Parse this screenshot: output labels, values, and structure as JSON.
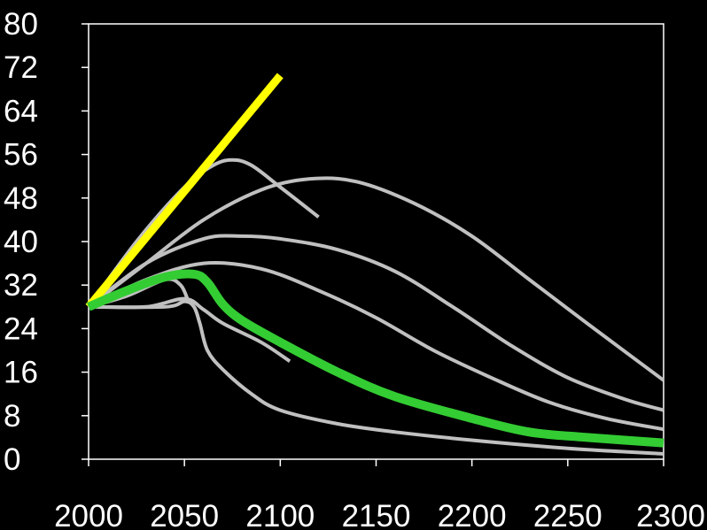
{
  "chart_data": {
    "type": "line",
    "title": "",
    "xlabel": "",
    "ylabel": "",
    "xlim": [
      2000,
      2300
    ],
    "ylim": [
      0,
      80
    ],
    "xticks": [
      2000,
      2050,
      2100,
      2150,
      2200,
      2250,
      2300
    ],
    "yticks": [
      0,
      8,
      16,
      24,
      32,
      40,
      48,
      56,
      64,
      72,
      80
    ],
    "grid": false,
    "legend": "none",
    "colors": {
      "background": "#000000",
      "axes": "#ffffff",
      "projection": "#c0c0c0",
      "highlight": "#33cc33",
      "linear": "#ffff00"
    },
    "series": [
      {
        "style": "linear",
        "x": [
          2000,
          2100
        ],
        "y": [
          28,
          70.5
        ]
      },
      {
        "style": "projection",
        "x": [
          2000,
          2025,
          2050,
          2065,
          2075,
          2085,
          2100,
          2120
        ],
        "y": [
          28,
          40,
          50,
          54,
          55,
          54,
          50,
          44.5
        ]
      },
      {
        "style": "projection",
        "x": [
          2000,
          2030,
          2060,
          2090,
          2115,
          2140,
          2170,
          2200,
          2230,
          2260,
          2300
        ],
        "y": [
          28,
          36,
          44,
          49.5,
          51.5,
          51,
          47,
          41,
          33,
          25,
          14.5
        ]
      },
      {
        "style": "projection",
        "x": [
          2000,
          2030,
          2060,
          2080,
          2100,
          2130,
          2160,
          2190,
          2220,
          2250,
          2280,
          2300
        ],
        "y": [
          28,
          36,
          40.5,
          41,
          40.5,
          38.5,
          34.5,
          28,
          21,
          15,
          11,
          9
        ]
      },
      {
        "style": "projection",
        "x": [
          2000,
          2030,
          2060,
          2090,
          2120,
          2150,
          2180,
          2210,
          2240,
          2270,
          2300
        ],
        "y": [
          28,
          33,
          36,
          35,
          31,
          26,
          20,
          15,
          10.5,
          7.5,
          5.5
        ]
      },
      {
        "style": "projection",
        "x": [
          2000,
          2040,
          2050,
          2055,
          2058,
          2062,
          2070,
          2085,
          2100,
          2130,
          2160,
          2200,
          2250,
          2300
        ],
        "y": [
          28,
          28,
          29,
          28,
          25,
          20,
          16.5,
          12,
          9,
          6.5,
          5,
          3.5,
          2,
          1
        ]
      },
      {
        "style": "projection",
        "x": [
          2000,
          2030,
          2050,
          2060,
          2070,
          2090,
          2105
        ],
        "y": [
          28,
          28,
          29.5,
          27.5,
          25,
          21.5,
          18
        ]
      },
      {
        "style": "projection",
        "x": [
          2000,
          2020,
          2040,
          2048,
          2052
        ],
        "y": [
          28,
          30,
          33,
          32,
          29
        ]
      },
      {
        "style": "highlight",
        "x": [
          2000,
          2020,
          2040,
          2055,
          2062,
          2070,
          2080,
          2100,
          2130,
          2160,
          2200,
          2230,
          2260,
          2300
        ],
        "y": [
          28,
          31,
          33.5,
          34,
          32.5,
          28.5,
          25.5,
          21.5,
          16,
          11.5,
          7.5,
          5,
          4,
          3
        ]
      }
    ]
  }
}
